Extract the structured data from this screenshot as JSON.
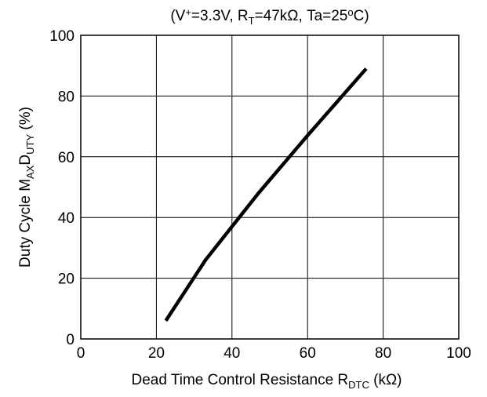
{
  "chart_data": {
    "type": "line",
    "title": [
      "(V",
      "+",
      "=3.3V, R",
      "T",
      "=47kΩ, Ta=25",
      "o",
      "C)"
    ],
    "ylabel": [
      "Duty Cycle  M",
      "AX",
      "D",
      "UTY",
      "  (%)"
    ],
    "xlabel": [
      "Dead Time Control Resistance  R",
      "DTC",
      "  (kΩ)"
    ],
    "x": [
      22.5,
      33,
      47,
      60,
      75.5
    ],
    "series": [
      {
        "color": "#000000",
        "values": [
          6,
          26,
          48,
          67,
          89
        ]
      }
    ],
    "xlim": [
      0,
      100
    ],
    "xticks": [
      0,
      20,
      40,
      60,
      80,
      100
    ],
    "ylim": [
      0,
      100
    ],
    "yticks": [
      0,
      20,
      40,
      60,
      80,
      100
    ],
    "grid": true
  }
}
